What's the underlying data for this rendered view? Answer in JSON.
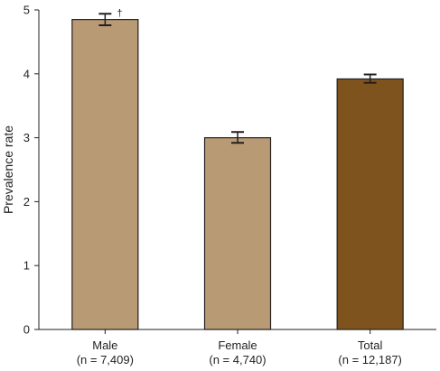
{
  "chart_data": {
    "type": "bar",
    "title": "",
    "xlabel": "",
    "ylabel": "Prevalence rate",
    "ylim": [
      0,
      5
    ],
    "yticks": [
      0,
      1,
      2,
      3,
      4,
      5
    ],
    "grid": false,
    "categories": [
      {
        "label": "Male",
        "sublabel": "(n = 7,409)",
        "value": 4.85,
        "err_low": 4.76,
        "err_high": 4.94,
        "color": "#b89b74",
        "annotation": "†"
      },
      {
        "label": "Female",
        "sublabel": "(n = 4,740)",
        "value": 3.0,
        "err_low": 2.92,
        "err_high": 3.09,
        "color": "#b89b74",
        "annotation": ""
      },
      {
        "label": "Total",
        "sublabel": "(n = 12,187)",
        "value": 3.92,
        "err_low": 3.86,
        "err_high": 3.99,
        "color": "#7f531e",
        "annotation": ""
      }
    ]
  }
}
